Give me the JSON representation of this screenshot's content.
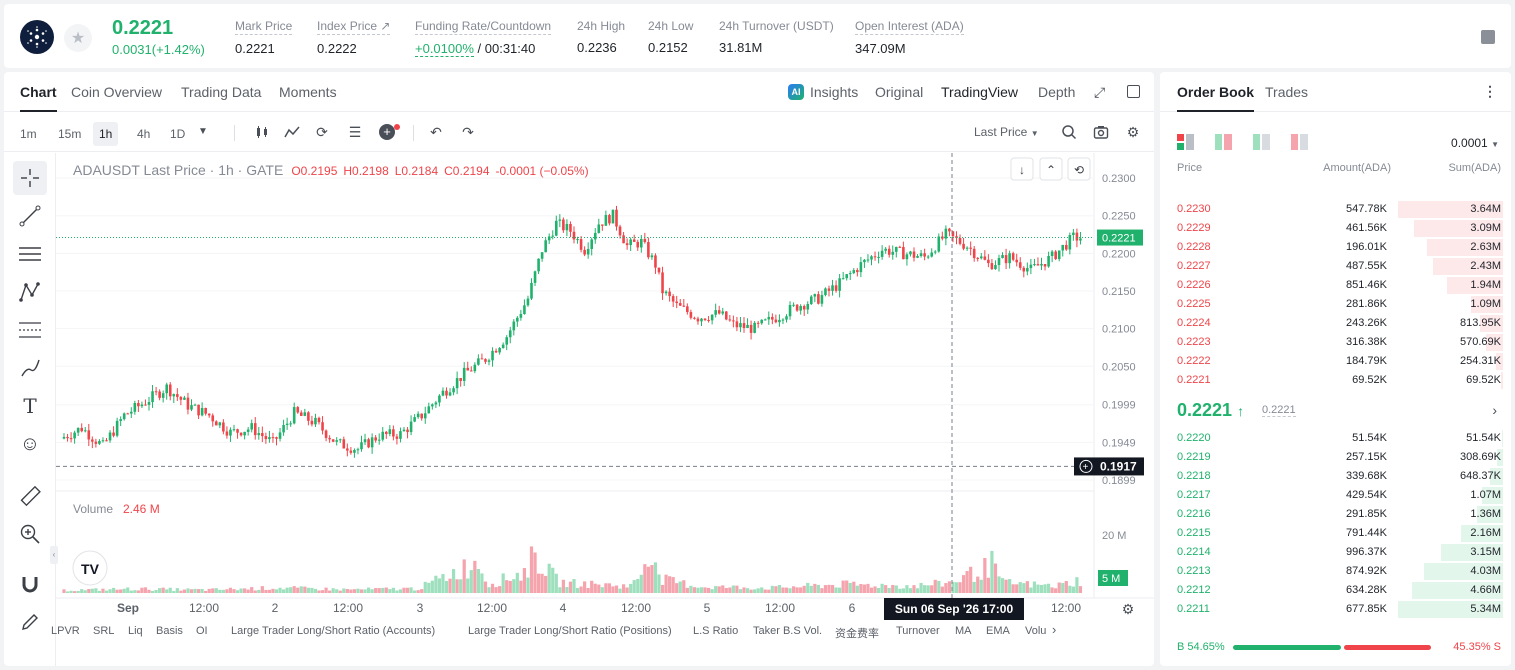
{
  "ticker": {
    "last_price": "0.2221",
    "change": "0.0031(+1.42%)",
    "stats": [
      {
        "label": "Mark Price",
        "value": "0.2221"
      },
      {
        "label": "Index Price ↗",
        "value": "0.2222"
      },
      {
        "label": "Funding Rate/Countdown",
        "value_green": "+0.0100%",
        "value_rest": " / 00:31:40"
      },
      {
        "label": "24h High",
        "value": "0.2236"
      },
      {
        "label": "24h Low",
        "value": "0.2152"
      },
      {
        "label": "24h Turnover (USDT)",
        "value": "31.81M"
      },
      {
        "label": "Open Interest (ADA)",
        "value": "347.09M"
      }
    ]
  },
  "chart_tabs": [
    "Chart",
    "Coin Overview",
    "Trading Data",
    "Moments"
  ],
  "chart_tabs_right": [
    "Insights",
    "Original",
    "TradingView",
    "Depth"
  ],
  "timeframes": [
    "1m",
    "15m",
    "1h",
    "4h",
    "1D"
  ],
  "price_type": "Last Price",
  "legend": {
    "title": "ADAUSDT Last Price · 1h · GATE",
    "o": "O0.2195",
    "h": "H0.2198",
    "l": "L0.2184",
    "c": "C0.2194",
    "chg": "-0.0001 (−0.05%)"
  },
  "volume_legend": {
    "label": "Volume",
    "value": "2.46 M"
  },
  "crosshair": {
    "price": "0.1917",
    "time": "Sun 06 Sep '26   17:00"
  },
  "current_price_tag": "0.2221",
  "bottom_indicators": [
    "LPVR",
    "SRL",
    "Liq",
    "Basis",
    "OI",
    "Large Trader Long/Short Ratio (Accounts)",
    "Large Trader Long/Short Ratio (Positions)",
    "L.S Ratio",
    "Taker B.S Vol.",
    "资金费率",
    "Turnover",
    "MA",
    "EMA",
    "Volu"
  ],
  "chart_data": {
    "type": "candlestick",
    "title": "ADAUSDT Last Price · 1h · GATE",
    "y_ticks": [
      "0.2300",
      "0.2250",
      "0.2200",
      "0.2150",
      "0.2100",
      "0.2050",
      "0.1999",
      "0.1949",
      "0.1899"
    ],
    "y_tick_values": [
      0.23,
      0.225,
      0.22,
      0.215,
      0.21,
      0.205,
      0.1999,
      0.1949,
      0.1899
    ],
    "ylim": [
      0.1895,
      0.232
    ],
    "volume_ticks": [
      "20 M",
      "5 M"
    ],
    "x_ticks": [
      "Sep",
      "12:00",
      "2",
      "12:00",
      "3",
      "12:00",
      "4",
      "12:00",
      "5",
      "12:00",
      "6",
      "12:00"
    ],
    "anchors": [
      [
        0,
        0.1954
      ],
      [
        6,
        0.1968
      ],
      [
        12,
        0.1944
      ],
      [
        18,
        0.1985
      ],
      [
        24,
        0.2003
      ],
      [
        30,
        0.2022
      ],
      [
        36,
        0.1998
      ],
      [
        42,
        0.1985
      ],
      [
        48,
        0.1962
      ],
      [
        54,
        0.1968
      ],
      [
        60,
        0.1948
      ],
      [
        66,
        0.1988
      ],
      [
        72,
        0.1975
      ],
      [
        78,
        0.1948
      ],
      [
        84,
        0.194
      ],
      [
        90,
        0.1958
      ],
      [
        96,
        0.196
      ],
      [
        102,
        0.1985
      ],
      [
        108,
        0.2015
      ],
      [
        114,
        0.204
      ],
      [
        120,
        0.206
      ],
      [
        126,
        0.209
      ],
      [
        132,
        0.214
      ],
      [
        136,
        0.2205
      ],
      [
        140,
        0.224
      ],
      [
        144,
        0.223
      ],
      [
        148,
        0.2205
      ],
      [
        152,
        0.224
      ],
      [
        156,
        0.225
      ],
      [
        160,
        0.221
      ],
      [
        164,
        0.2215
      ],
      [
        168,
        0.2185
      ],
      [
        170,
        0.215
      ],
      [
        174,
        0.213
      ],
      [
        180,
        0.2115
      ],
      [
        186,
        0.212
      ],
      [
        190,
        0.2105
      ],
      [
        196,
        0.21
      ],
      [
        202,
        0.2115
      ],
      [
        208,
        0.213
      ],
      [
        214,
        0.214
      ],
      [
        220,
        0.216
      ],
      [
        226,
        0.2185
      ],
      [
        232,
        0.2205
      ],
      [
        238,
        0.22
      ],
      [
        244,
        0.2195
      ],
      [
        250,
        0.2225
      ],
      [
        256,
        0.221
      ],
      [
        262,
        0.2185
      ],
      [
        268,
        0.2195
      ],
      [
        274,
        0.2178
      ],
      [
        280,
        0.2195
      ],
      [
        286,
        0.2221
      ]
    ],
    "volume_anchors": [
      [
        0,
        0.8
      ],
      [
        20,
        1.2
      ],
      [
        40,
        0.9
      ],
      [
        60,
        1.5
      ],
      [
        80,
        1.0
      ],
      [
        100,
        1.3
      ],
      [
        117,
        9.0
      ],
      [
        120,
        2.5
      ],
      [
        130,
        6.0
      ],
      [
        133,
        11.0
      ],
      [
        136,
        7.0
      ],
      [
        140,
        3.0
      ],
      [
        150,
        2.5
      ],
      [
        160,
        2.0
      ],
      [
        163,
        6.0
      ],
      [
        166,
        15.0
      ],
      [
        168,
        4.0
      ],
      [
        180,
        1.8
      ],
      [
        200,
        1.5
      ],
      [
        220,
        2.5
      ],
      [
        240,
        2.0
      ],
      [
        250,
        3.0
      ],
      [
        260,
        7.0
      ],
      [
        262,
        8.5
      ],
      [
        265,
        3.0
      ],
      [
        280,
        2.0
      ],
      [
        286,
        3.5
      ]
    ],
    "candles": 288
  },
  "orderbook": {
    "tabs": [
      "Order Book",
      "Trades"
    ],
    "precision": "0.0001",
    "headers": [
      "Price",
      "Amount(ADA)",
      "Sum(ADA)"
    ],
    "asks": [
      {
        "price": "0.2230",
        "amount": "547.78K",
        "sum": "3.64M",
        "depth": 1.0
      },
      {
        "price": "0.2229",
        "amount": "461.56K",
        "sum": "3.09M",
        "depth": 0.85
      },
      {
        "price": "0.2228",
        "amount": "196.01K",
        "sum": "2.63M",
        "depth": 0.72
      },
      {
        "price": "0.2227",
        "amount": "487.55K",
        "sum": "2.43M",
        "depth": 0.67
      },
      {
        "price": "0.2226",
        "amount": "851.46K",
        "sum": "1.94M",
        "depth": 0.53
      },
      {
        "price": "0.2225",
        "amount": "281.86K",
        "sum": "1.09M",
        "depth": 0.3
      },
      {
        "price": "0.2224",
        "amount": "243.26K",
        "sum": "813.95K",
        "depth": 0.22
      },
      {
        "price": "0.2223",
        "amount": "316.38K",
        "sum": "570.69K",
        "depth": 0.16
      },
      {
        "price": "0.2222",
        "amount": "184.79K",
        "sum": "254.31K",
        "depth": 0.07
      },
      {
        "price": "0.2221",
        "amount": "69.52K",
        "sum": "69.52K",
        "depth": 0.02
      }
    ],
    "mid": {
      "price": "0.2221",
      "arrow": "↑",
      "mark": "0.2221"
    },
    "bids": [
      {
        "price": "0.2220",
        "amount": "51.54K",
        "sum": "51.54K",
        "depth": 0.01
      },
      {
        "price": "0.2219",
        "amount": "257.15K",
        "sum": "308.69K",
        "depth": 0.06
      },
      {
        "price": "0.2218",
        "amount": "339.68K",
        "sum": "648.37K",
        "depth": 0.12
      },
      {
        "price": "0.2217",
        "amount": "429.54K",
        "sum": "1.07M",
        "depth": 0.2
      },
      {
        "price": "0.2216",
        "amount": "291.85K",
        "sum": "1.36M",
        "depth": 0.25
      },
      {
        "price": "0.2215",
        "amount": "791.44K",
        "sum": "2.16M",
        "depth": 0.4
      },
      {
        "price": "0.2214",
        "amount": "996.37K",
        "sum": "3.15M",
        "depth": 0.59
      },
      {
        "price": "0.2213",
        "amount": "874.92K",
        "sum": "4.03M",
        "depth": 0.75
      },
      {
        "price": "0.2212",
        "amount": "634.28K",
        "sum": "4.66M",
        "depth": 0.87
      },
      {
        "price": "0.2211",
        "amount": "677.85K",
        "sum": "5.34M",
        "depth": 1.0
      }
    ],
    "buy_ratio": "B 54.65%",
    "sell_ratio": "45.35% S",
    "buy_fraction": 0.5465
  },
  "colors": {
    "up": "#20b26c",
    "down": "#ef454a",
    "up_vol": "#9ee0bd",
    "down_vol": "#f5a3ac"
  }
}
